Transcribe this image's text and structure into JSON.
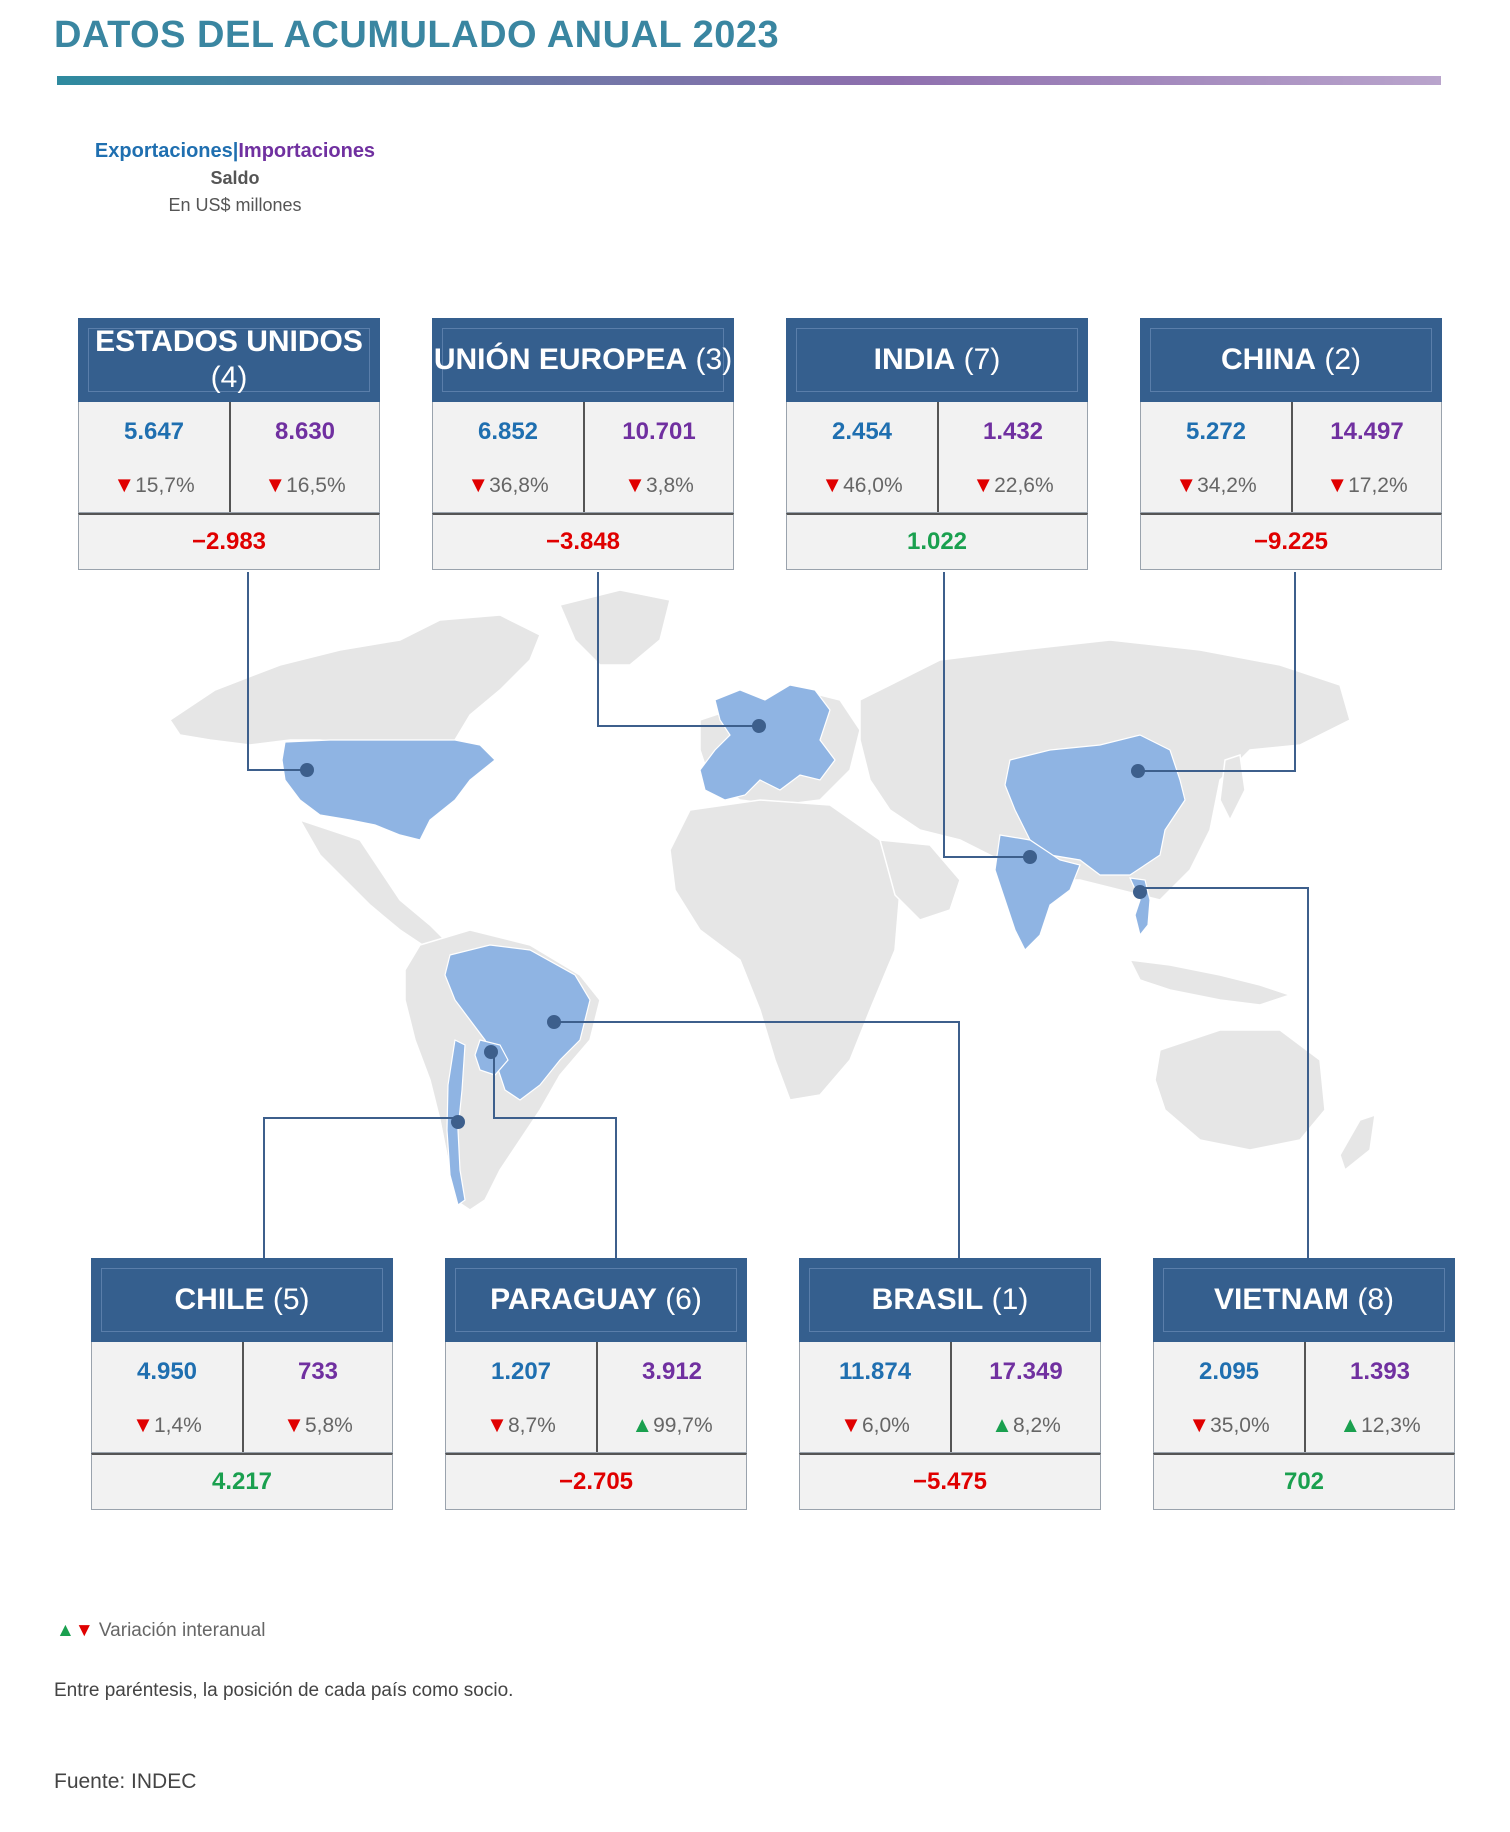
{
  "title": "DATOS DEL ACUMULADO ANUAL 2023",
  "legend": {
    "exportaciones": "Exportaciones",
    "separator": "|",
    "importaciones": "Importaciones",
    "saldo": "Saldo",
    "unit": "En US$ millones"
  },
  "colors": {
    "exports": "#1f6fb0",
    "imports": "#7030a0",
    "negative": "#e00000",
    "positive": "#1aa04f",
    "header": "#355f8e",
    "partner_fill": "#8fb4e3",
    "land_fill": "#e6e6e6"
  },
  "arrows": {
    "up": "▲",
    "down": "▼"
  },
  "cards": {
    "us": {
      "name": "ESTADOS UNIDOS",
      "rank": "(4)",
      "exp": "5.647",
      "imp": "8.630",
      "exp_var": "15,7%",
      "exp_dir": "down",
      "imp_var": "16,5%",
      "imp_dir": "down",
      "saldo": "−2.983",
      "saldo_sign": "neg"
    },
    "eu": {
      "name": "UNIÓN EUROPEA",
      "rank": "(3)",
      "exp": "6.852",
      "imp": "10.701",
      "exp_var": "36,8%",
      "exp_dir": "down",
      "imp_var": "3,8%",
      "imp_dir": "down",
      "saldo": "−3.848",
      "saldo_sign": "neg"
    },
    "india": {
      "name": "INDIA",
      "rank": "(7)",
      "exp": "2.454",
      "imp": "1.432",
      "exp_var": "46,0%",
      "exp_dir": "down",
      "imp_var": "22,6%",
      "imp_dir": "down",
      "saldo": "1.022",
      "saldo_sign": "pos"
    },
    "china": {
      "name": "CHINA",
      "rank": "(2)",
      "exp": "5.272",
      "imp": "14.497",
      "exp_var": "34,2%",
      "exp_dir": "down",
      "imp_var": "17,2%",
      "imp_dir": "down",
      "saldo": "−9.225",
      "saldo_sign": "neg"
    },
    "chile": {
      "name": "CHILE",
      "rank": "(5)",
      "exp": "4.950",
      "imp": "733",
      "exp_var": "1,4%",
      "exp_dir": "down",
      "imp_var": "5,8%",
      "imp_dir": "down",
      "saldo": "4.217",
      "saldo_sign": "pos"
    },
    "paraguay": {
      "name": "PARAGUAY",
      "rank": "(6)",
      "exp": "1.207",
      "imp": "3.912",
      "exp_var": "8,7%",
      "exp_dir": "down",
      "imp_var": "99,7%",
      "imp_dir": "up",
      "saldo": "−2.705",
      "saldo_sign": "neg"
    },
    "brasil": {
      "name": "BRASIL",
      "rank": "(1)",
      "exp": "11.874",
      "imp": "17.349",
      "exp_var": "6,0%",
      "exp_dir": "down",
      "imp_var": "8,2%",
      "imp_dir": "up",
      "saldo": "−5.475",
      "saldo_sign": "neg"
    },
    "vietnam": {
      "name": "VIETNAM",
      "rank": "(8)",
      "exp": "2.095",
      "imp": "1.393",
      "exp_var": "35,0%",
      "exp_dir": "down",
      "imp_var": "12,3%",
      "imp_dir": "up",
      "saldo": "702",
      "saldo_sign": "pos"
    }
  },
  "notes": {
    "variation": "Variación interanual",
    "position": "Entre paréntesis, la posición de cada país como socio.",
    "source": "Fuente: INDEC"
  }
}
